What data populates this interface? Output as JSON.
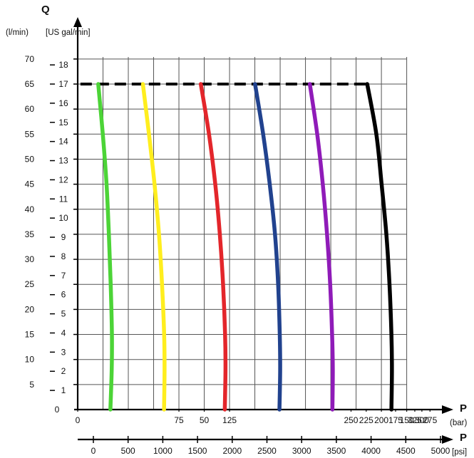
{
  "chart_data": {
    "type": "line",
    "title": "",
    "y_title": "Q",
    "y_units": [
      "(l/min)",
      "[US gal/min]"
    ],
    "x_title": "P",
    "x_primary_unit": "(bar)",
    "x_secondary_unit": "[psi]",
    "y_lpm_range": [
      0,
      65
    ],
    "y_lpm_ticks": [
      "0",
      "5",
      "10",
      "15",
      "20",
      "25",
      "30",
      "35",
      "40",
      "45",
      "50",
      "55",
      "60",
      "65",
      "70"
    ],
    "y_gpm_ticks": [
      "1",
      "2",
      "3",
      "4",
      "5",
      "6",
      "7",
      "8",
      "9",
      "10",
      "11",
      "12",
      "13",
      "14",
      "15",
      "16",
      "17",
      "18"
    ],
    "x_bar_range": [
      0,
      345
    ],
    "x_bar_ticks": [
      "0",
      "75",
      "50",
      "125",
      "250",
      "225",
      "200",
      "175",
      "150",
      "325",
      "300",
      "275"
    ],
    "x_psi_ticks": [
      "0",
      "500",
      "1000",
      "1500",
      "2000",
      "2500",
      "3000",
      "3500",
      "4000",
      "4500",
      "5000"
    ],
    "max_flow_lpm": 65,
    "grid": true,
    "series": [
      {
        "color": "#4cd437",
        "points": [
          [
            20.3,
            65
          ],
          [
            24.8,
            55
          ],
          [
            28.5,
            45
          ],
          [
            30.8,
            35
          ],
          [
            32.6,
            25
          ],
          [
            33.8,
            15
          ],
          [
            33.6,
            8
          ],
          [
            32.3,
            0
          ]
        ]
      },
      {
        "color": "#ffee1e",
        "points": [
          [
            64.4,
            65
          ],
          [
            70.4,
            55
          ],
          [
            75.9,
            45
          ],
          [
            80.3,
            35
          ],
          [
            83.3,
            25
          ],
          [
            85.4,
            15
          ],
          [
            85.8,
            8
          ],
          [
            85.3,
            0
          ]
        ]
      },
      {
        "color": "#e3262b",
        "points": [
          [
            121.6,
            65
          ],
          [
            129.7,
            55
          ],
          [
            135.9,
            45
          ],
          [
            140.4,
            35
          ],
          [
            143.6,
            25
          ],
          [
            145.6,
            15
          ],
          [
            146.0,
            8
          ],
          [
            145.3,
            0
          ]
        ]
      },
      {
        "color": "#21428e",
        "points": [
          [
            175.2,
            65
          ],
          [
            183.2,
            55
          ],
          [
            189.7,
            45
          ],
          [
            194.9,
            35
          ],
          [
            198.0,
            25
          ],
          [
            199.6,
            15
          ],
          [
            200.0,
            8
          ],
          [
            199.3,
            0
          ]
        ]
      },
      {
        "color": "#8f1bb8",
        "points": [
          [
            229.3,
            65
          ],
          [
            236.6,
            55
          ],
          [
            242.1,
            45
          ],
          [
            246.3,
            35
          ],
          [
            249.4,
            25
          ],
          [
            251.3,
            15
          ],
          [
            252.0,
            8
          ],
          [
            251.6,
            0
          ]
        ]
      },
      {
        "color": "#000000",
        "points": [
          [
            286.0,
            65
          ],
          [
            295.0,
            55
          ],
          [
            300.2,
            45
          ],
          [
            304.9,
            35
          ],
          [
            308.0,
            25
          ],
          [
            309.9,
            15
          ],
          [
            310.4,
            8
          ],
          [
            309.9,
            0
          ]
        ]
      }
    ]
  }
}
